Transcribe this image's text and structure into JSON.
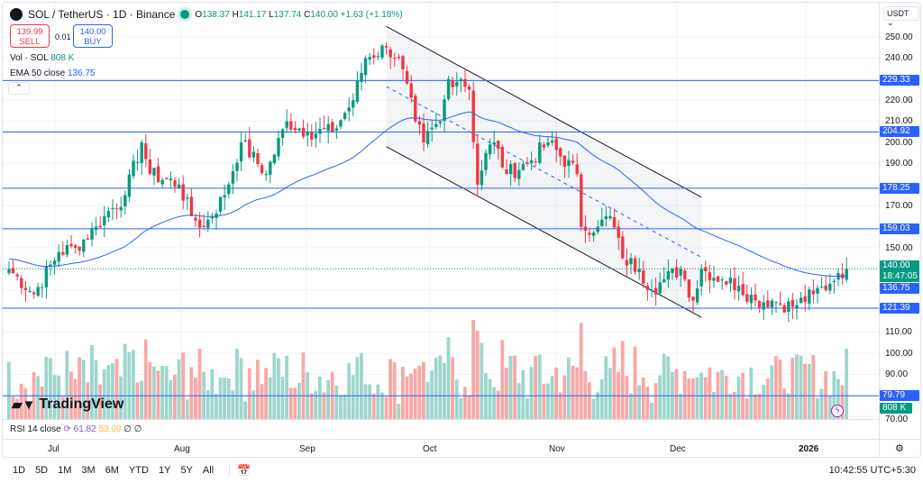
{
  "header": {
    "symbol": "SOL / TetherUS · 1D · Binance",
    "o_label": "O",
    "o": "138.37",
    "h_label": "H",
    "h": "141.17",
    "l_label": "L",
    "l": "137.74",
    "c_label": "C",
    "c": "140.00",
    "change": "+1.63 (+1.18%)"
  },
  "trade": {
    "sell_price": "139.99",
    "sell_label": "SELL",
    "spread": "0.01",
    "buy_price": "140.00",
    "buy_label": "BUY"
  },
  "indicators": {
    "vol_label": "Vol · SOL",
    "vol_value": "808 K",
    "ema_label": "EMA 50 close",
    "ema_value": "136.75",
    "rsi_label": "RSI 14 close",
    "rsi_value": "61.82",
    "rsi_ma": "53.09",
    "rsi_x1": "∅",
    "rsi_x2": "∅"
  },
  "axis": {
    "currency": "USDT",
    "ticks": [
      "250.00",
      "240.00",
      "220.00",
      "210.00",
      "200.00",
      "190.00",
      "170.00",
      "150.00",
      "110.00",
      "100.00",
      "90.00",
      "70.00"
    ],
    "levels": [
      {
        "value": "229.33"
      },
      {
        "value": "204.92"
      },
      {
        "value": "178.25"
      },
      {
        "value": "159.03"
      },
      {
        "value": "121.39"
      },
      {
        "value": "79.79"
      }
    ],
    "last_price": "140.00",
    "countdown": "18:47:05",
    "ema_tag": "136.75",
    "vol_tag": "808 K"
  },
  "time_axis": [
    "Jul",
    "Aug",
    "Sep",
    "Oct",
    "Nov",
    "Dec",
    "2026"
  ],
  "ranges": [
    "1D",
    "5D",
    "1M",
    "3M",
    "6M",
    "YTD",
    "1Y",
    "5Y",
    "All"
  ],
  "clock": "10:42:55 UTC+5:30",
  "brand": "TradingView",
  "colors": {
    "up": "#089981",
    "down": "#f23645",
    "vol_up": "#9ed6cd",
    "vol_down": "#f7a9a7",
    "ema": "#2962ff",
    "level": "#2962ff"
  },
  "chart_data": {
    "type": "candlestick",
    "note": "approximate daily closes (anchors, interpolated)",
    "start_date": "2025-06-19",
    "anchors": [
      [
        "06-19",
        140
      ],
      [
        "06-25",
        128
      ],
      [
        "07-01",
        148
      ],
      [
        "07-05",
        150
      ],
      [
        "07-10",
        160
      ],
      [
        "07-12",
        165
      ],
      [
        "07-17",
        175
      ],
      [
        "07-21",
        200
      ],
      [
        "07-23",
        185
      ],
      [
        "07-30",
        180
      ],
      [
        "08-02",
        165
      ],
      [
        "08-05",
        160
      ],
      [
        "08-10",
        175
      ],
      [
        "08-14",
        200
      ],
      [
        "08-20",
        185
      ],
      [
        "08-25",
        210
      ],
      [
        "08-30",
        205
      ],
      [
        "09-05",
        205
      ],
      [
        "09-10",
        220
      ],
      [
        "09-13",
        240
      ],
      [
        "09-18",
        245
      ],
      [
        "09-21",
        240
      ],
      [
        "09-25",
        210
      ],
      [
        "09-27",
        200
      ],
      [
        "10-01",
        210
      ],
      [
        "10-03",
        230
      ],
      [
        "10-06",
        230
      ],
      [
        "10-08",
        225
      ],
      [
        "10-10",
        180
      ],
      [
        "10-12",
        195
      ],
      [
        "10-14",
        200
      ],
      [
        "10-17",
        185
      ],
      [
        "10-22",
        190
      ],
      [
        "10-27",
        200
      ],
      [
        "11-03",
        185
      ],
      [
        "11-04",
        160
      ],
      [
        "11-08",
        160
      ],
      [
        "11-11",
        165
      ],
      [
        "11-14",
        145
      ],
      [
        "11-18",
        140
      ],
      [
        "11-21",
        130
      ],
      [
        "11-24",
        135
      ],
      [
        "11-28",
        140
      ],
      [
        "12-01",
        125
      ],
      [
        "12-03",
        140
      ],
      [
        "12-08",
        135
      ],
      [
        "12-12",
        132
      ],
      [
        "12-16",
        125
      ],
      [
        "12-20",
        125
      ],
      [
        "12-25",
        122
      ],
      [
        "12-30",
        128
      ],
      [
        "01-03",
        133
      ],
      [
        "01-05",
        138
      ],
      [
        "01-07",
        140
      ]
    ],
    "channel": {
      "start": "09-18",
      "end": "12-03",
      "upper": [
        255,
        174
      ],
      "lower": [
        198,
        117
      ]
    },
    "ylim": [
      70,
      255
    ]
  }
}
